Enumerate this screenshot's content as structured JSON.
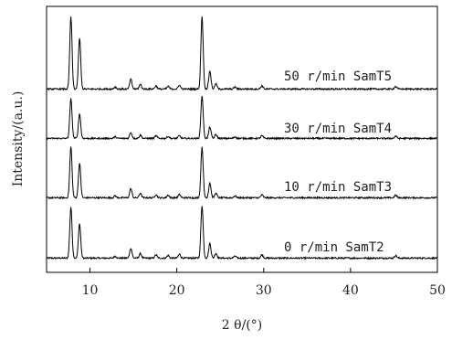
{
  "chart_data": {
    "type": "line",
    "title": "",
    "xlabel": "2 θ/(°)",
    "ylabel": "Intensity/(a.u.)",
    "xlim": [
      5,
      50
    ],
    "xticks": [
      "10",
      "20",
      "30",
      "40",
      "50"
    ],
    "grid": false,
    "legend": "none",
    "line_color": "#000000",
    "series": [
      {
        "name": "0 r/min SamT2",
        "baseline": 0.1,
        "peaks": [
          [
            7.8,
            1.55
          ],
          [
            8.8,
            1.05
          ],
          [
            12.9,
            0.06
          ],
          [
            14.7,
            0.3
          ],
          [
            15.8,
            0.14
          ],
          [
            17.6,
            0.1
          ],
          [
            19.0,
            0.08
          ],
          [
            20.3,
            0.12
          ],
          [
            22.9,
            1.6
          ],
          [
            23.8,
            0.45
          ],
          [
            24.5,
            0.15
          ],
          [
            26.7,
            0.06
          ],
          [
            29.8,
            0.1
          ],
          [
            45.2,
            0.08
          ]
        ]
      },
      {
        "name": "10 r/min SamT3",
        "baseline": 0.1,
        "peaks": [
          [
            7.8,
            1.55
          ],
          [
            8.8,
            1.05
          ],
          [
            12.9,
            0.06
          ],
          [
            14.7,
            0.28
          ],
          [
            15.8,
            0.14
          ],
          [
            17.6,
            0.1
          ],
          [
            19.0,
            0.08
          ],
          [
            20.3,
            0.1
          ],
          [
            22.9,
            1.55
          ],
          [
            23.8,
            0.45
          ],
          [
            24.5,
            0.14
          ],
          [
            26.7,
            0.06
          ],
          [
            29.8,
            0.09
          ],
          [
            45.2,
            0.08
          ]
        ]
      },
      {
        "name": "30 r/min SamT4",
        "baseline": 0.1,
        "peaks": [
          [
            7.8,
            1.2
          ],
          [
            8.8,
            0.75
          ],
          [
            12.9,
            0.05
          ],
          [
            14.7,
            0.18
          ],
          [
            15.8,
            0.1
          ],
          [
            17.6,
            0.08
          ],
          [
            19.0,
            0.06
          ],
          [
            20.3,
            0.08
          ],
          [
            22.9,
            1.3
          ],
          [
            23.8,
            0.35
          ],
          [
            24.5,
            0.12
          ],
          [
            26.7,
            0.05
          ],
          [
            29.8,
            0.08
          ],
          [
            45.2,
            0.07
          ]
        ]
      },
      {
        "name": "50 r/min SamT5",
        "baseline": 0.1,
        "peaks": [
          [
            7.8,
            2.2
          ],
          [
            8.8,
            1.55
          ],
          [
            12.9,
            0.06
          ],
          [
            14.7,
            0.3
          ],
          [
            15.8,
            0.14
          ],
          [
            17.6,
            0.1
          ],
          [
            19.0,
            0.08
          ],
          [
            20.3,
            0.12
          ],
          [
            22.9,
            2.2
          ],
          [
            23.8,
            0.55
          ],
          [
            24.5,
            0.16
          ],
          [
            26.7,
            0.06
          ],
          [
            29.8,
            0.1
          ],
          [
            45.2,
            0.08
          ]
        ]
      }
    ]
  }
}
